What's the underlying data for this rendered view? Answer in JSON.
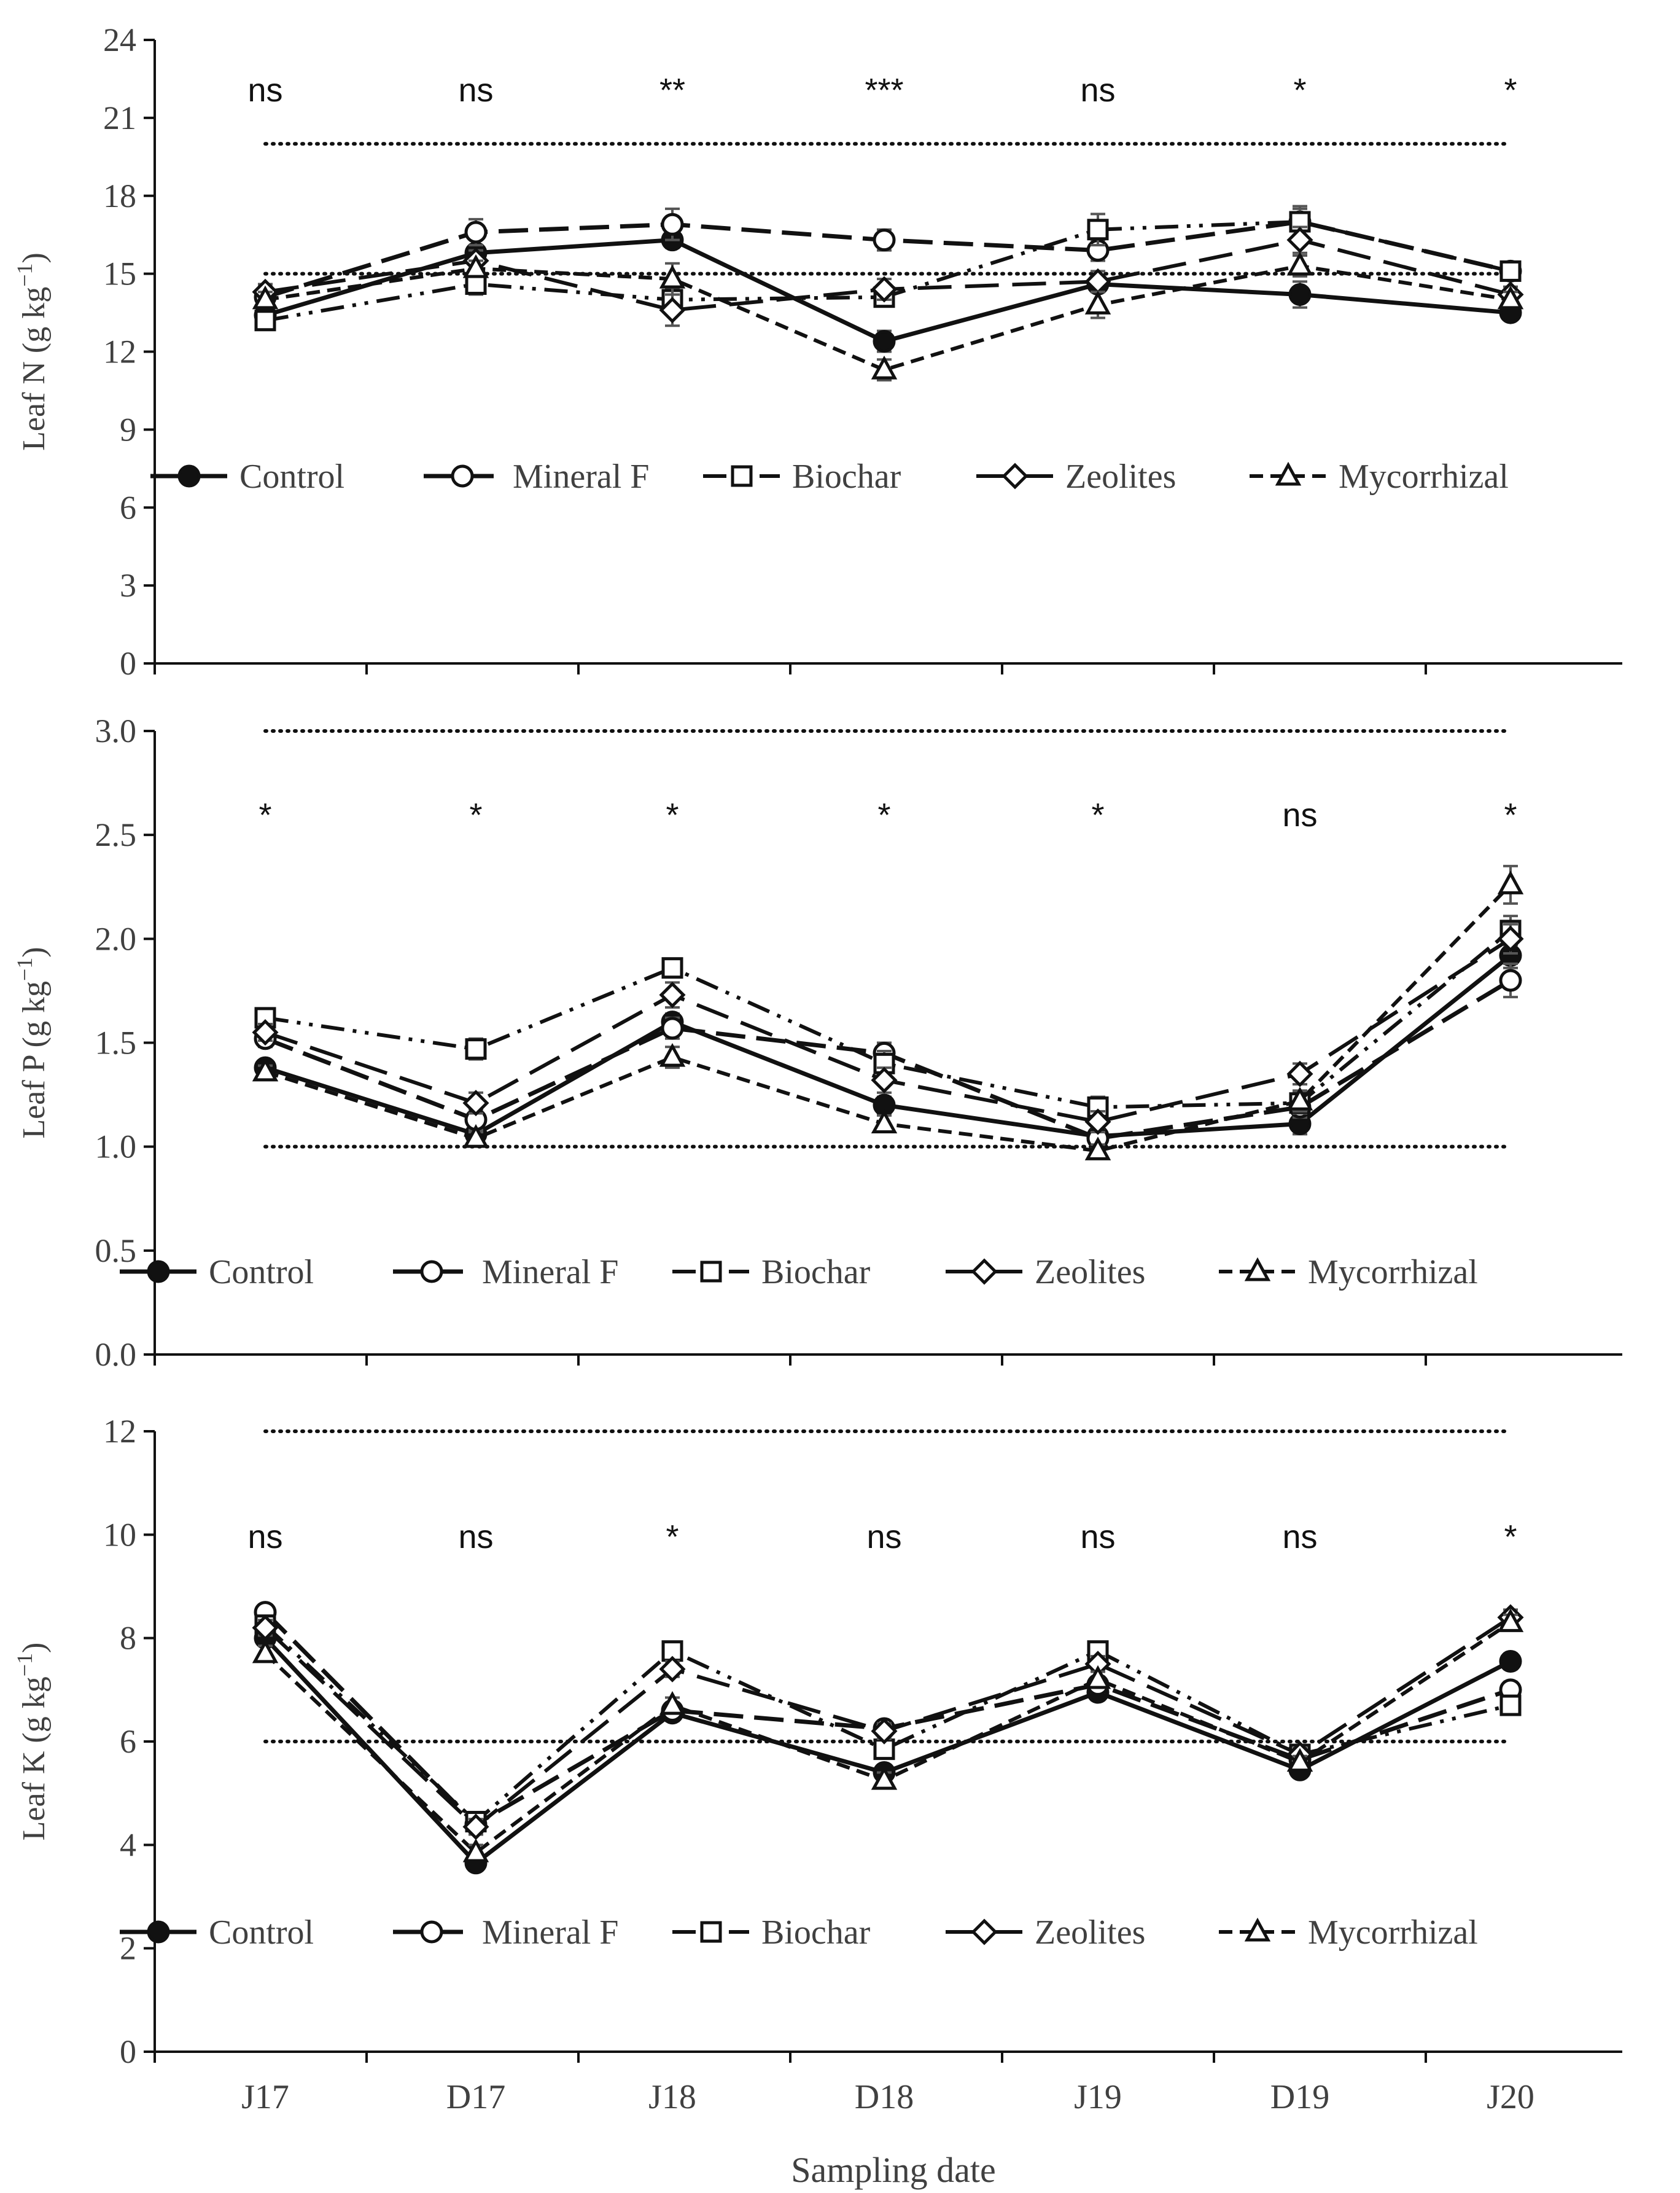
{
  "chart_data": [
    {
      "type": "line",
      "ylabel": "Leaf N (g kg",
      "ylabel_sup": "−1",
      "ylabel_tail": ")",
      "ylim": [
        0,
        24
      ],
      "yticks": [
        0,
        3,
        6,
        9,
        12,
        15,
        18,
        21,
        24
      ],
      "ytick_labels": [
        "0",
        "3",
        "6",
        "9",
        "12",
        "15",
        "18",
        "21",
        "24"
      ],
      "reference_lines": [
        20,
        15
      ],
      "significance": [
        "ns",
        "ns",
        "**",
        "***",
        "ns",
        "*",
        "*"
      ],
      "series": [
        {
          "name": "Control",
          "values": [
            13.4,
            15.8,
            16.3,
            12.4,
            14.6,
            14.2,
            13.5
          ],
          "errors": [
            0.3,
            0.3,
            0.3,
            0.4,
            0.3,
            0.5,
            0.2
          ]
        },
        {
          "name": "Mineral F",
          "values": [
            14.1,
            16.6,
            16.9,
            16.3,
            15.9,
            17.0,
            15.1
          ],
          "errors": [
            0.4,
            0.5,
            0.6,
            0.4,
            0.4,
            0.5,
            0.3
          ]
        },
        {
          "name": "Biochar",
          "values": [
            13.2,
            14.6,
            14.0,
            14.1,
            16.7,
            17.0,
            15.1
          ],
          "errors": [
            0.2,
            0.4,
            0.4,
            0.3,
            0.6,
            0.6,
            0.3
          ]
        },
        {
          "name": "Zeolites",
          "values": [
            14.3,
            15.5,
            13.6,
            14.4,
            14.7,
            16.3,
            14.2
          ],
          "errors": [
            0.3,
            0.4,
            0.6,
            0.4,
            0.4,
            0.5,
            0.3
          ]
        },
        {
          "name": "Mycorrhizal",
          "values": [
            14.0,
            15.2,
            14.8,
            11.3,
            13.8,
            15.3,
            14.0
          ],
          "errors": [
            0.3,
            0.3,
            0.6,
            0.4,
            0.5,
            0.4,
            0.3
          ]
        }
      ]
    },
    {
      "type": "line",
      "ylabel": "Leaf P (g kg",
      "ylabel_sup": "−1",
      "ylabel_tail": ")",
      "ylim": [
        0,
        3
      ],
      "yticks": [
        0,
        0.5,
        1,
        1.5,
        2,
        2.5,
        3
      ],
      "ytick_labels": [
        "0.0",
        "0.5",
        "1.0",
        "1.5",
        "2.0",
        "2.5",
        "3.0"
      ],
      "reference_lines": [
        3.0,
        1.0
      ],
      "significance": [
        "*",
        "*",
        "*",
        "*",
        "*",
        "ns",
        "*"
      ],
      "series": [
        {
          "name": "Control",
          "values": [
            1.38,
            1.06,
            1.6,
            1.2,
            1.05,
            1.11,
            1.92
          ],
          "errors": [
            0.03,
            0.03,
            0.04,
            0.04,
            0.03,
            0.05,
            0.06
          ]
        },
        {
          "name": "Mineral F",
          "values": [
            1.52,
            1.13,
            1.57,
            1.45,
            1.04,
            1.19,
            1.8
          ],
          "errors": [
            0.04,
            0.05,
            0.05,
            0.05,
            0.04,
            0.05,
            0.08
          ]
        },
        {
          "name": "Biochar",
          "values": [
            1.62,
            1.47,
            1.86,
            1.4,
            1.19,
            1.21,
            2.04
          ],
          "errors": [
            0.04,
            0.05,
            0.04,
            0.06,
            0.05,
            0.05,
            0.07
          ]
        },
        {
          "name": "Zeolites",
          "values": [
            1.55,
            1.21,
            1.73,
            1.32,
            1.12,
            1.35,
            2.0
          ],
          "errors": [
            0.04,
            0.05,
            0.06,
            0.06,
            0.05,
            0.05,
            0.07
          ]
        },
        {
          "name": "Mycorrhizal",
          "values": [
            1.36,
            1.04,
            1.43,
            1.11,
            0.98,
            1.22,
            2.26
          ],
          "errors": [
            0.03,
            0.03,
            0.05,
            0.04,
            0.03,
            0.05,
            0.09
          ]
        }
      ]
    },
    {
      "type": "line",
      "ylabel": "Leaf K (g kg",
      "ylabel_sup": "−1",
      "ylabel_tail": ")",
      "xlabel": "Sampling date",
      "ylim": [
        0,
        12
      ],
      "yticks": [
        0,
        2,
        4,
        6,
        8,
        10,
        12
      ],
      "ytick_labels": [
        "0",
        "2",
        "4",
        "6",
        "8",
        "10",
        "12"
      ],
      "reference_lines": [
        12,
        6
      ],
      "significance": [
        "ns",
        "ns",
        "*",
        "ns",
        "ns",
        "ns",
        "*"
      ],
      "series": [
        {
          "name": "Control",
          "values": [
            8.0,
            3.65,
            6.55,
            5.4,
            6.95,
            5.45,
            7.55
          ],
          "errors": [
            0.15,
            0.12,
            0.15,
            0.15,
            0.15,
            0.12,
            0.15
          ]
        },
        {
          "name": "Mineral F",
          "values": [
            8.5,
            4.4,
            6.6,
            6.25,
            7.1,
            5.65,
            7.0
          ],
          "errors": [
            0.15,
            0.15,
            0.15,
            0.15,
            0.15,
            0.12,
            0.15
          ]
        },
        {
          "name": "Biochar",
          "values": [
            8.25,
            4.45,
            7.75,
            5.85,
            7.75,
            5.75,
            6.7
          ],
          "errors": [
            0.15,
            0.15,
            0.15,
            0.15,
            0.15,
            0.12,
            0.15
          ]
        },
        {
          "name": "Zeolites",
          "values": [
            8.2,
            4.35,
            7.4,
            6.2,
            7.5,
            5.75,
            8.4
          ],
          "errors": [
            0.15,
            0.15,
            0.15,
            0.15,
            0.15,
            0.12,
            0.15
          ]
        },
        {
          "name": "Mycorrhizal",
          "values": [
            7.7,
            3.85,
            6.7,
            5.25,
            7.2,
            5.6,
            8.3
          ],
          "errors": [
            0.15,
            0.15,
            0.15,
            0.15,
            0.15,
            0.12,
            0.15
          ]
        }
      ]
    }
  ],
  "categories": [
    "J17",
    "D17",
    "J18",
    "D18",
    "J19",
    "D19",
    "J20"
  ],
  "legend": [
    "Control",
    "Mineral F",
    "Biochar",
    "Zeolites",
    "Mycorrhizal"
  ]
}
